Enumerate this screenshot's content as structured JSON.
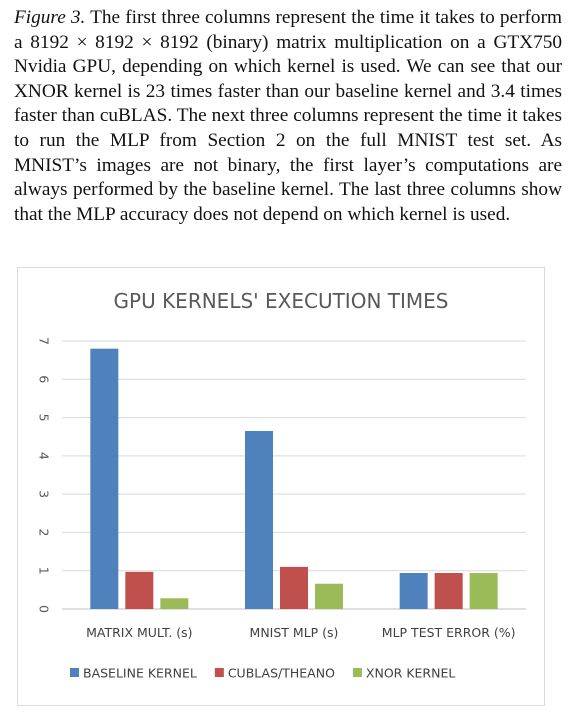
{
  "caption": {
    "label": "Figure 3.",
    "text": "The first three columns represent the time it takes to perform a 8192 × 8192 × 8192 (binary) matrix multiplication on a GTX750 Nvidia GPU, depending on which kernel is used. We can see that our XNOR kernel is 23 times faster than our baseline kernel and 3.4 times faster than cuBLAS. The next three columns represent the time it takes to run the MLP from Section 2 on the full MNIST test set. As MNIST’s images are not binary, the first layer’s computations are always performed by the baseline kernel. The last three columns show that the MLP accuracy does not depend on which kernel is used."
  },
  "chart_data": {
    "type": "bar",
    "title": "GPU KERNELS' EXECUTION TIMES",
    "categories": [
      "MATRIX MULT. (s)",
      "MNIST MLP (s)",
      "MLP TEST ERROR (%)"
    ],
    "series": [
      {
        "name": "BASELINE KERNEL",
        "values": [
          6.8,
          4.65,
          0.94
        ],
        "color": "#4f81bd"
      },
      {
        "name": "CUBLAS/THEANO",
        "values": [
          0.97,
          1.1,
          0.94
        ],
        "color": "#c0504d"
      },
      {
        "name": "XNOR KERNEL",
        "values": [
          0.28,
          0.66,
          0.94
        ],
        "color": "#9bbb59"
      }
    ],
    "ylim": [
      0,
      7
    ],
    "yticks": [
      0,
      1,
      2,
      3,
      4,
      5,
      6,
      7
    ],
    "grid": true,
    "legend": "bottom",
    "ytick_rotation": "90"
  }
}
